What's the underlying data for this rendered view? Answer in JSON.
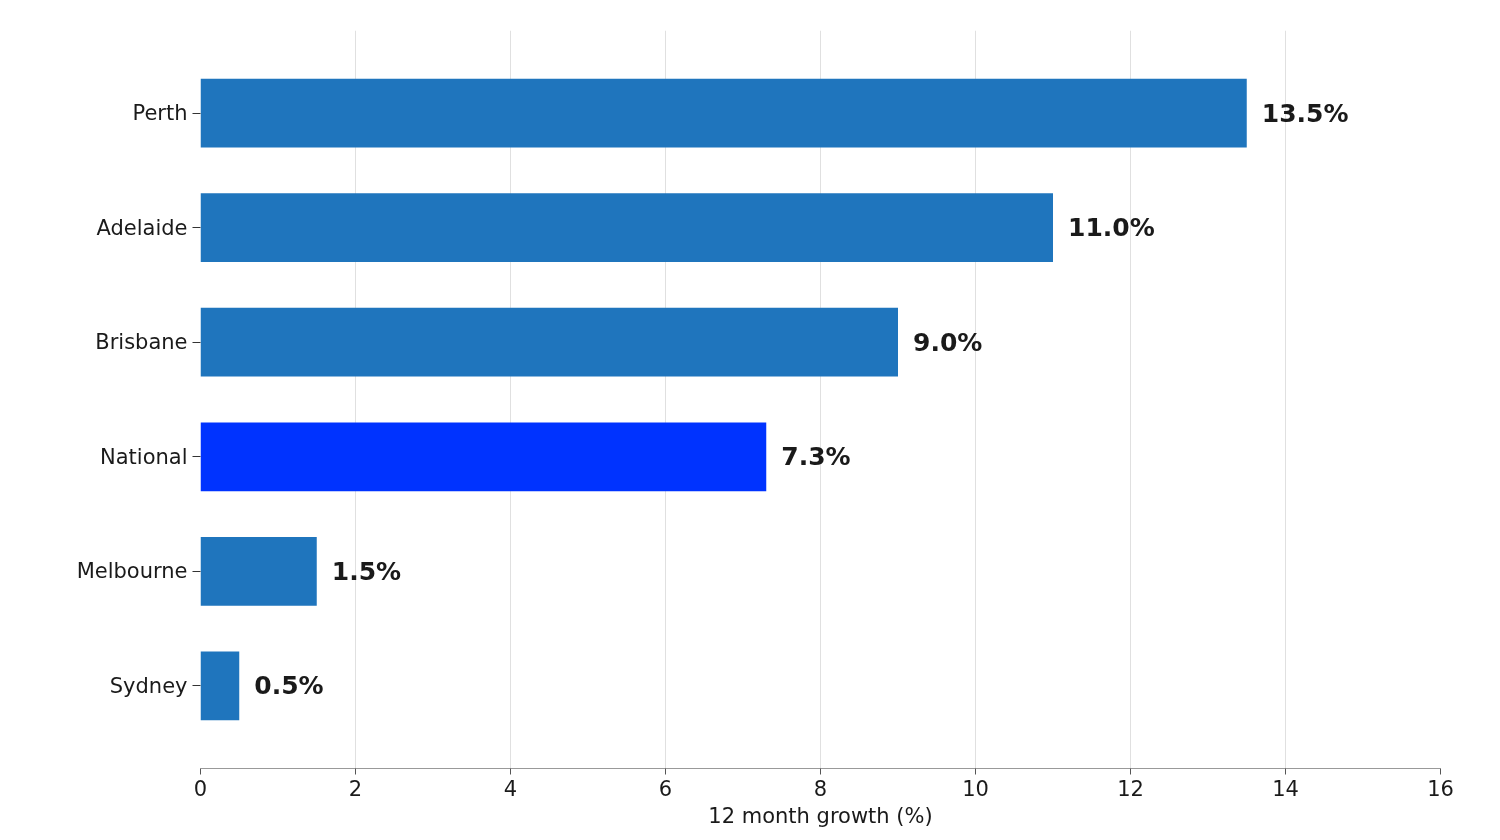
{
  "chart_data": {
    "type": "bar",
    "orientation": "horizontal",
    "xlabel": "12 month growth (%)",
    "categories": [
      "Perth",
      "Adelaide",
      "Brisbane",
      "National",
      "Melbourne",
      "Sydney"
    ],
    "values": [
      13.5,
      11.0,
      9.0,
      7.3,
      1.5,
      0.5
    ],
    "colors": [
      "#1f75bd",
      "#1f75bd",
      "#1f75bd",
      "#0033ff",
      "#1f75bd",
      "#1f75bd"
    ],
    "value_labels": [
      "13.5%",
      "11.0%",
      "9.0%",
      "7.3%",
      "1.5%",
      "0.5%"
    ],
    "xlim": [
      0,
      16
    ],
    "xticks": [
      0,
      2,
      4,
      6,
      8,
      10,
      12,
      14,
      16
    ],
    "grid": "x"
  }
}
